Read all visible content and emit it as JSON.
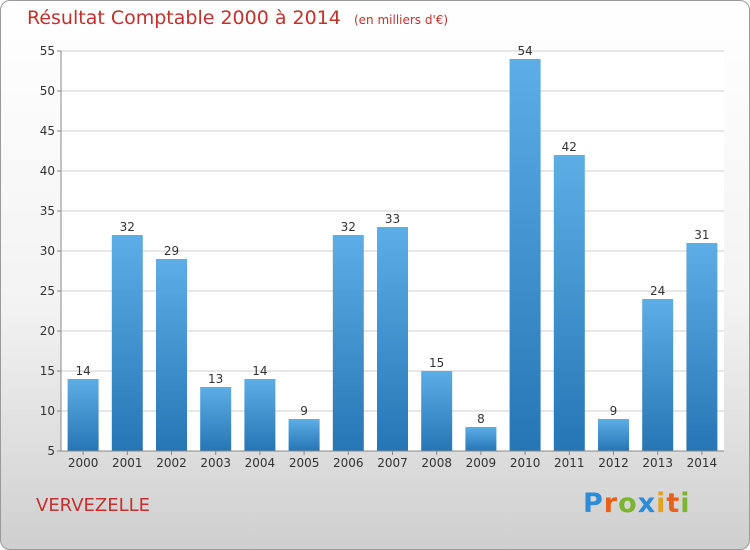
{
  "chart_data": {
    "type": "bar",
    "title": "Résultat Comptable 2000 à 2014",
    "subtitle": "(en milliers d'€)",
    "categories": [
      "2000",
      "2001",
      "2002",
      "2003",
      "2004",
      "2005",
      "2006",
      "2007",
      "2008",
      "2009",
      "2010",
      "2011",
      "2012",
      "2013",
      "2014"
    ],
    "values": [
      14,
      32,
      29,
      13,
      14,
      9,
      32,
      33,
      15,
      8,
      54,
      42,
      9,
      24,
      31
    ],
    "value_labels": [
      "14",
      "32",
      "29",
      "13",
      "14",
      "9",
      "32",
      "33",
      "15",
      "8",
      "54",
      "42",
      "9",
      "24",
      "31"
    ],
    "ylim": [
      5,
      55
    ],
    "yticks": [
      5,
      10,
      15,
      20,
      25,
      30,
      35,
      40,
      45,
      50,
      55
    ],
    "ytick_labels": [
      "5",
      "10",
      "15",
      "20",
      "25",
      "30",
      "35",
      "40",
      "45",
      "50",
      "55"
    ],
    "grid": true,
    "bar_color_top": "#5dade6",
    "bar_color_bottom": "#2676b6",
    "text_color": "#333333"
  },
  "location": "VERVEZELLE",
  "logo": {
    "letters": [
      "P",
      "r",
      "o",
      "x",
      "i",
      "t",
      "i"
    ],
    "colors": [
      "#2e8bd8",
      "#e8601c",
      "#7bb62e",
      "#2e8bd8",
      "#e8a11c",
      "#e8601c",
      "#7bb62e"
    ]
  },
  "accent_color": "#c4302b"
}
